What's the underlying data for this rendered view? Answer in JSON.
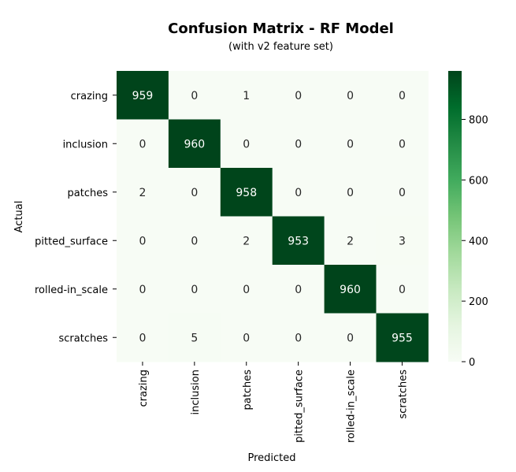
{
  "chart_data": {
    "type": "heatmap",
    "title": "Confusion Matrix - RF Model",
    "subtitle": "(with v2 feature set)",
    "xlabel": "Predicted",
    "ylabel": "Actual",
    "x_categories": [
      "crazing",
      "inclusion",
      "patches",
      "pitted_surface",
      "rolled-in_scale",
      "scratches"
    ],
    "y_categories": [
      "crazing",
      "inclusion",
      "patches",
      "pitted_surface",
      "rolled-in_scale",
      "scratches"
    ],
    "values": [
      [
        959,
        0,
        1,
        0,
        0,
        0
      ],
      [
        0,
        960,
        0,
        0,
        0,
        0
      ],
      [
        2,
        0,
        958,
        0,
        0,
        0
      ],
      [
        0,
        0,
        2,
        953,
        2,
        3
      ],
      [
        0,
        0,
        0,
        0,
        960,
        0
      ],
      [
        0,
        5,
        0,
        0,
        0,
        955
      ]
    ],
    "vmin": 0,
    "vmax": 960,
    "colormap": "Greens",
    "colorbar_ticks": [
      0,
      200,
      400,
      600,
      800
    ],
    "grid": false,
    "colors": {
      "low": "#f7fcf5",
      "mid": "#74c476",
      "high": "#00441b"
    }
  }
}
